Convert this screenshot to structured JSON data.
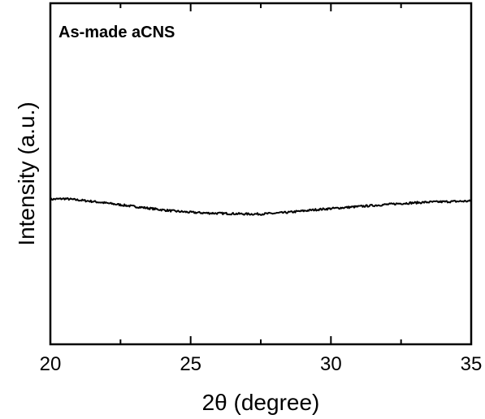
{
  "chart_data": {
    "type": "line",
    "annotation": "As-made aCNS",
    "xlabel": "2θ (degree)",
    "ylabel": "Intensity (a.u.)",
    "xlim": [
      20,
      35
    ],
    "ylim": [
      0,
      1
    ],
    "xticks": [
      20,
      25,
      30,
      35
    ],
    "yticks_shown": false,
    "grid": false,
    "series": [
      {
        "color": "#000000",
        "x": [
          20.0,
          20.5,
          21.0,
          21.5,
          22.0,
          22.5,
          23.0,
          23.5,
          24.0,
          24.5,
          25.0,
          25.5,
          26.0,
          26.5,
          27.0,
          27.5,
          28.0,
          28.5,
          29.0,
          29.5,
          30.0,
          30.5,
          31.0,
          31.5,
          32.0,
          32.5,
          33.0,
          33.5,
          34.0,
          34.5,
          35.0
        ],
        "y": [
          0.425,
          0.427,
          0.423,
          0.419,
          0.414,
          0.409,
          0.404,
          0.399,
          0.394,
          0.39,
          0.387,
          0.385,
          0.384,
          0.383,
          0.382,
          0.382,
          0.384,
          0.387,
          0.391,
          0.395,
          0.398,
          0.401,
          0.404,
          0.407,
          0.41,
          0.413,
          0.415,
          0.417,
          0.418,
          0.419,
          0.42
        ]
      }
    ]
  }
}
